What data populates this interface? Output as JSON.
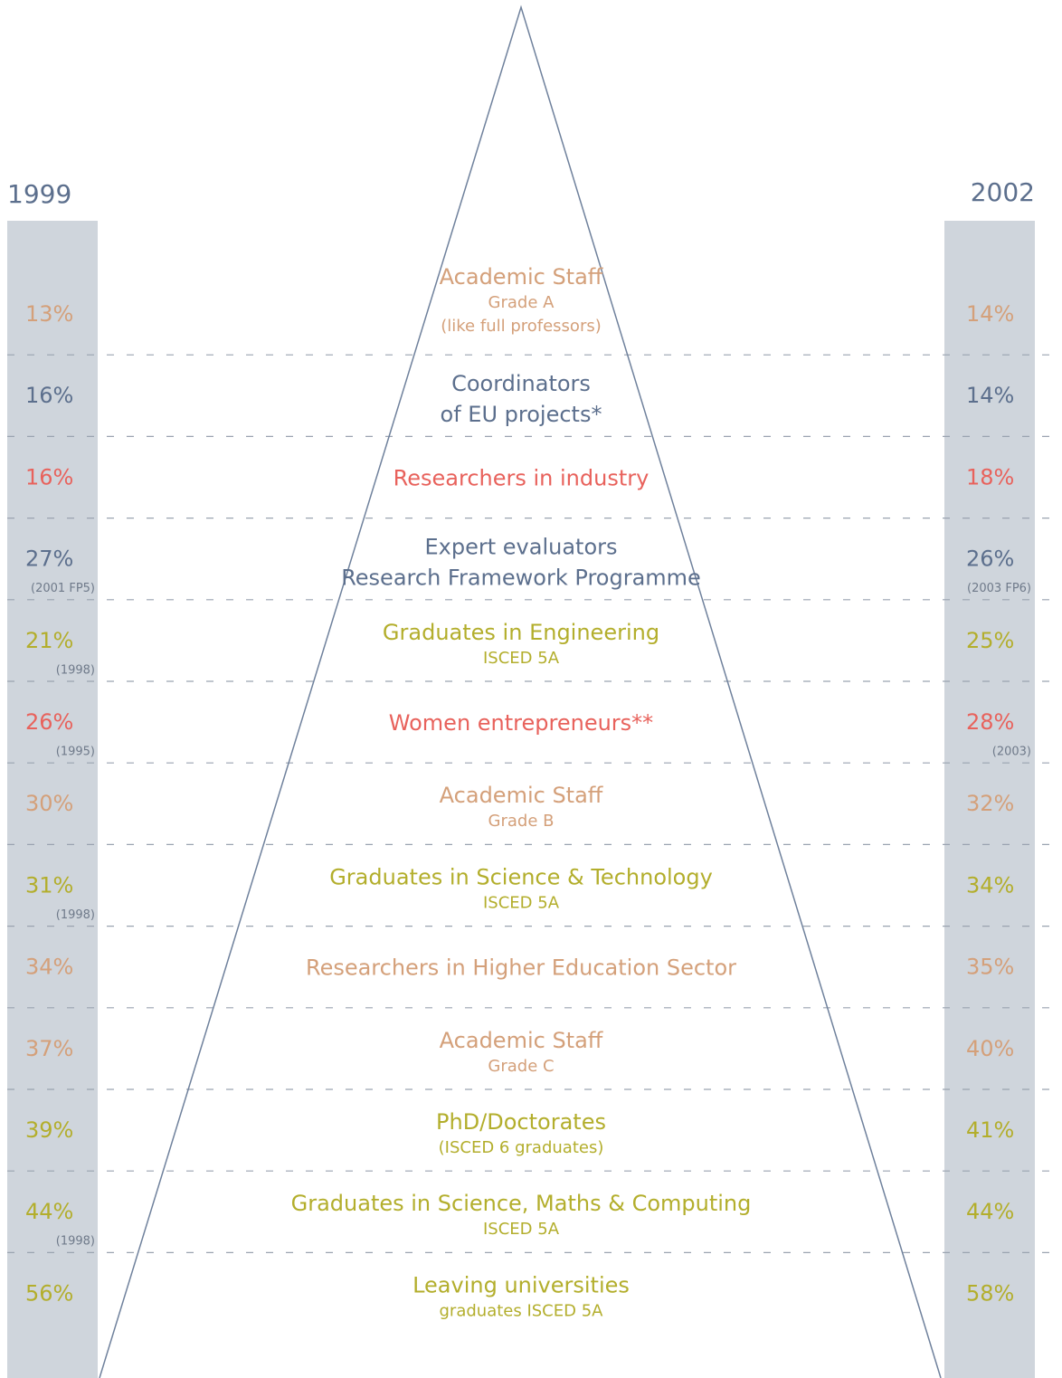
{
  "years": {
    "left": "1999",
    "right": "2002"
  },
  "rows": [
    {
      "title": [
        "Academic Staff"
      ],
      "subtitle": [
        "Grade A",
        "(like full professors)"
      ],
      "color": "#d4a07a",
      "left": {
        "value": "13%"
      },
      "right": {
        "value": "14%"
      }
    },
    {
      "title": [
        "Coordinators",
        "of EU projects*"
      ],
      "subtitle": [],
      "color": "#5c6f8d",
      "left": {
        "value": "16%"
      },
      "right": {
        "value": "14%"
      }
    },
    {
      "title": [
        "Researchers in industry"
      ],
      "subtitle": [],
      "color": "#e8625c",
      "left": {
        "value": "16%"
      },
      "right": {
        "value": "18%"
      }
    },
    {
      "title": [
        "Expert evaluators",
        "Research Framework Programme"
      ],
      "subtitle": [],
      "color": "#5c6f8d",
      "left": {
        "value": "27%",
        "note": "(2001 FP5)"
      },
      "right": {
        "value": "26%",
        "note": "(2003 FP6)"
      }
    },
    {
      "title": [
        "Graduates in Engineering"
      ],
      "subtitle": [
        "ISCED 5A"
      ],
      "color": "#b3ae2c",
      "left": {
        "value": "21%",
        "note": "(1998)"
      },
      "right": {
        "value": "25%"
      }
    },
    {
      "title": [
        "Women entrepreneurs**"
      ],
      "subtitle": [],
      "color": "#e8625c",
      "left": {
        "value": "26%",
        "note": "(1995)"
      },
      "right": {
        "value": "28%",
        "note": "(2003)"
      }
    },
    {
      "title": [
        "Academic Staff"
      ],
      "subtitle": [
        "Grade B"
      ],
      "color": "#d4a07a",
      "left": {
        "value": "30%"
      },
      "right": {
        "value": "32%"
      }
    },
    {
      "title": [
        "Graduates in Science & Technology"
      ],
      "subtitle": [
        "ISCED 5A"
      ],
      "color": "#b3ae2c",
      "left": {
        "value": "31%",
        "note": "(1998)"
      },
      "right": {
        "value": "34%"
      }
    },
    {
      "title": [
        "Researchers in Higher Education Sector"
      ],
      "subtitle": [],
      "color": "#d4a07a",
      "left": {
        "value": "34%"
      },
      "right": {
        "value": "35%"
      }
    },
    {
      "title": [
        "Academic Staff"
      ],
      "subtitle": [
        "Grade C"
      ],
      "color": "#d4a07a",
      "left": {
        "value": "37%"
      },
      "right": {
        "value": "40%"
      }
    },
    {
      "title": [
        "PhD/Doctorates"
      ],
      "subtitle": [
        "(ISCED 6 graduates)"
      ],
      "color": "#b3ae2c",
      "left": {
        "value": "39%"
      },
      "right": {
        "value": "41%"
      }
    },
    {
      "title": [
        "Graduates in Science, Maths & Computing"
      ],
      "subtitle": [
        "ISCED 5A"
      ],
      "color": "#b3ae2c",
      "left": {
        "value": "44%",
        "note": "(1998)"
      },
      "right": {
        "value": "44%"
      }
    },
    {
      "title": [
        "Leaving universities"
      ],
      "subtitle": [
        "graduates ISCED 5A"
      ],
      "color": "#b3ae2c",
      "left": {
        "value": "56%"
      },
      "right": {
        "value": "58%"
      }
    }
  ]
}
